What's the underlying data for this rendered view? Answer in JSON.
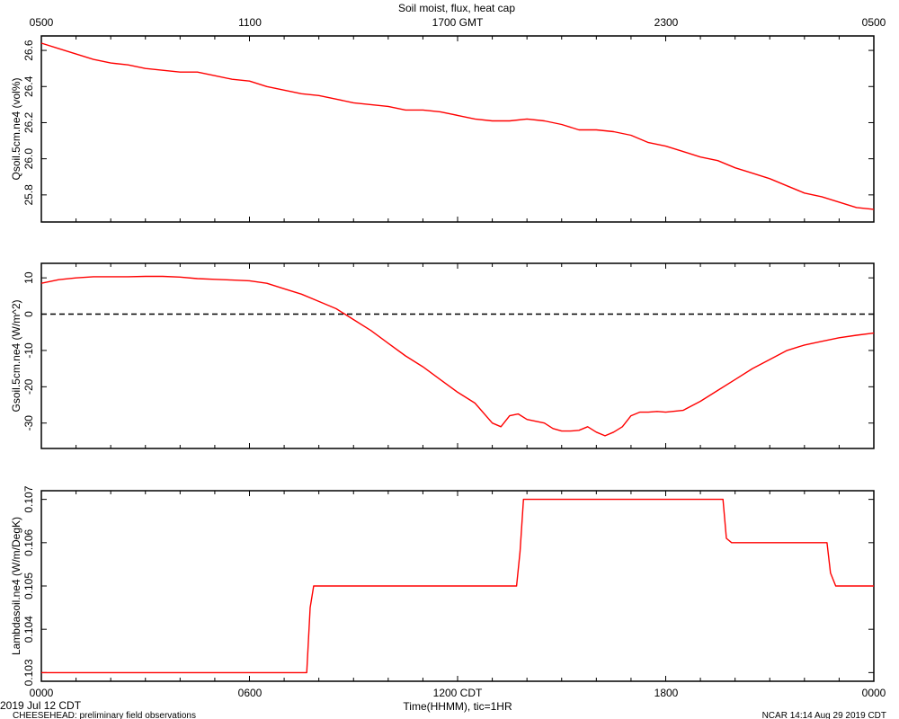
{
  "header": {
    "title": "Soil moist, flux, heat cap",
    "top_ticks": [
      "0500",
      "1100",
      "1700 GMT",
      "2300",
      "0500"
    ]
  },
  "footer": {
    "bottom_ticks": [
      "0000",
      "0600",
      "1200 CDT",
      "1800",
      "0000"
    ],
    "xlabel": "Time(HHMM), tic=1HR",
    "date": "2019 Jul 12 CDT",
    "project": "CHEESEHEAD: preliminary field observations",
    "stamp": "NCAR 14:14 Aug 29 2019 CDT"
  },
  "chart_data": [
    {
      "type": "line",
      "ylabel": "Qsoil.5cm.ne4 (vol%)",
      "ylim": [
        25.65,
        26.68
      ],
      "yticks": [
        25.8,
        26.0,
        26.2,
        26.4,
        26.6
      ],
      "ytick_labels": [
        "25.8",
        "26.0",
        "26.2",
        "26.4",
        "26.6"
      ],
      "xlim": [
        0,
        24
      ],
      "x_unit": "hours CDT",
      "series": [
        {
          "color": "#ff0000",
          "x": [
            0,
            0.5,
            1,
            1.5,
            2,
            2.5,
            3,
            3.5,
            4,
            4.5,
            5,
            5.5,
            6,
            6.5,
            7,
            7.5,
            8,
            8.5,
            9,
            9.5,
            10,
            10.5,
            11,
            11.5,
            12,
            12.5,
            13,
            13.5,
            14,
            14.5,
            15,
            15.5,
            16,
            16.5,
            17,
            17.5,
            18,
            18.5,
            19,
            19.5,
            20,
            20.5,
            21,
            21.5,
            22,
            22.5,
            23,
            23.5,
            24
          ],
          "values": [
            26.64,
            26.61,
            26.58,
            26.55,
            26.53,
            26.52,
            26.5,
            26.49,
            26.48,
            26.48,
            26.46,
            26.44,
            26.43,
            26.4,
            26.38,
            26.36,
            26.35,
            26.33,
            26.31,
            26.3,
            26.29,
            26.27,
            26.27,
            26.26,
            26.24,
            26.22,
            26.21,
            26.21,
            26.22,
            26.21,
            26.19,
            26.16,
            26.16,
            26.15,
            26.13,
            26.09,
            26.07,
            26.04,
            26.01,
            25.99,
            25.95,
            25.92,
            25.89,
            25.85,
            25.81,
            25.79,
            25.76,
            25.73,
            25.72
          ]
        }
      ]
    },
    {
      "type": "line",
      "ylabel": "Gsoil.5cm.ne4 (W/m^2)",
      "ylim": [
        -37,
        14
      ],
      "yticks": [
        -30,
        -20,
        -10,
        0,
        10
      ],
      "ytick_labels": [
        "-30",
        "-20",
        "-10",
        "0",
        "10"
      ],
      "zero_line": true,
      "xlim": [
        0,
        24
      ],
      "x_unit": "hours CDT",
      "series": [
        {
          "color": "#ff0000",
          "x": [
            0,
            0.5,
            1,
            1.5,
            2,
            2.5,
            3,
            3.5,
            4,
            4.5,
            5,
            5.5,
            6,
            6.5,
            7,
            7.5,
            8,
            8.5,
            9,
            9.5,
            10,
            10.5,
            11,
            11.5,
            12,
            12.5,
            13,
            13.25,
            13.5,
            13.75,
            14,
            14.25,
            14.5,
            14.75,
            15,
            15.25,
            15.5,
            15.75,
            16,
            16.25,
            16.5,
            16.75,
            17,
            17.25,
            17.5,
            17.75,
            18,
            18.5,
            19,
            19.5,
            20,
            20.5,
            21,
            21.5,
            22,
            22.5,
            23,
            23.5,
            24
          ],
          "values": [
            8.5,
            9.5,
            10.0,
            10.3,
            10.3,
            10.3,
            10.4,
            10.4,
            10.2,
            9.8,
            9.6,
            9.4,
            9.2,
            8.5,
            7.0,
            5.5,
            3.5,
            1.5,
            -1.5,
            -4.5,
            -8.0,
            -11.5,
            -14.5,
            -18.0,
            -21.5,
            -24.5,
            -30.0,
            -31.0,
            -28.0,
            -27.5,
            -29.0,
            -29.5,
            -30.0,
            -31.5,
            -32.2,
            -32.2,
            -32.0,
            -31.0,
            -32.5,
            -33.5,
            -32.5,
            -31.0,
            -28.0,
            -27.0,
            -27.0,
            -26.8,
            -27.0,
            -26.5,
            -24.0,
            -21.0,
            -18.0,
            -15.0,
            -12.5,
            -10.0,
            -8.5,
            -7.5,
            -6.5,
            -5.8,
            -5.2
          ]
        }
      ]
    },
    {
      "type": "line",
      "ylabel": "Lambdasoil.ne4 (W/m/DegK)",
      "ylim": [
        102.8,
        107.2
      ],
      "y_scale_note": "values are thousandths: 103 = 0.103",
      "yticks": [
        103,
        104,
        105,
        106,
        107
      ],
      "ytick_labels": [
        "0.103",
        "0.104",
        "0.105",
        "0.106",
        "0.107"
      ],
      "xlim": [
        0,
        24
      ],
      "x_unit": "hours CDT",
      "series": [
        {
          "color": "#ff0000",
          "x": [
            0,
            7.65,
            7.75,
            7.85,
            13.7,
            13.8,
            13.9,
            19.65,
            19.75,
            19.9,
            22.65,
            22.75,
            22.9,
            24
          ],
          "values": [
            103,
            103,
            104.5,
            105,
            105,
            105.8,
            107,
            107,
            106.1,
            106,
            106,
            105.3,
            105,
            105
          ]
        }
      ]
    }
  ]
}
